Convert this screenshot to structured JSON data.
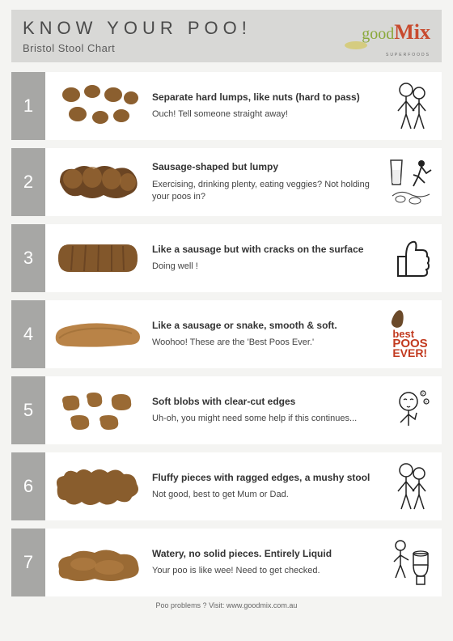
{
  "header": {
    "title": "KNOW YOUR POO!",
    "subtitle": "Bristol Stool Chart",
    "logo": {
      "part1": "good",
      "part2": "Mix",
      "sub": "SUPERFOODS"
    }
  },
  "colors": {
    "page_bg": "#f4f4f2",
    "header_bg": "#d8d8d6",
    "num_bg": "#a7a7a5",
    "num_text": "#ffffff",
    "row_bg": "#ffffff",
    "title_text": "#4a4a4a",
    "heading_text": "#333333",
    "body_text": "#444444",
    "brown_dark": "#6b4523",
    "brown_mid": "#9a6a34",
    "brown_light": "#b98347",
    "logo_green": "#8aa83a",
    "logo_red": "#c84a2e",
    "bpe_red": "#c23a1f"
  },
  "rows": [
    {
      "num": "1",
      "heading": "Separate hard lumps, like nuts (hard to pass)",
      "body": "Ouch! Tell someone straight away!",
      "stool_type": "lumps",
      "side_type": "person"
    },
    {
      "num": "2",
      "heading": "Sausage-shaped but lumpy",
      "body": "Exercising, drinking plenty, eating veggies? Not holding your poos in?",
      "stool_type": "lumpy-sausage",
      "side_type": "glass-runner"
    },
    {
      "num": "3",
      "heading": "Like a sausage but with cracks on the surface",
      "body": "Doing well !",
      "stool_type": "cracked-sausage",
      "side_type": "thumbs-up"
    },
    {
      "num": "4",
      "heading": "Like a sausage or snake, smooth & soft.",
      "body": "Woohoo! These are the 'Best Poos Ever.'",
      "stool_type": "smooth-sausage",
      "side_type": "best-poos"
    },
    {
      "num": "5",
      "heading": "Soft blobs with clear-cut edges",
      "body": "Uh-oh, you might need some help if this continues...",
      "stool_type": "blobs",
      "side_type": "thinking"
    },
    {
      "num": "6",
      "heading": "Fluffy pieces with ragged edges, a mushy stool",
      "body": "Not good, best to get Mum or Dad.",
      "stool_type": "fluffy",
      "side_type": "person"
    },
    {
      "num": "7",
      "heading": "Watery, no solid pieces. Entirely Liquid",
      "body": "Your poo is like wee! Need to get checked.",
      "stool_type": "liquid",
      "side_type": "toilet"
    }
  ],
  "bpe": {
    "line1": "best",
    "line2": "POOS",
    "line3": "EVER!"
  },
  "footer": "Poo problems ? Visit: www.goodmix.com.au"
}
